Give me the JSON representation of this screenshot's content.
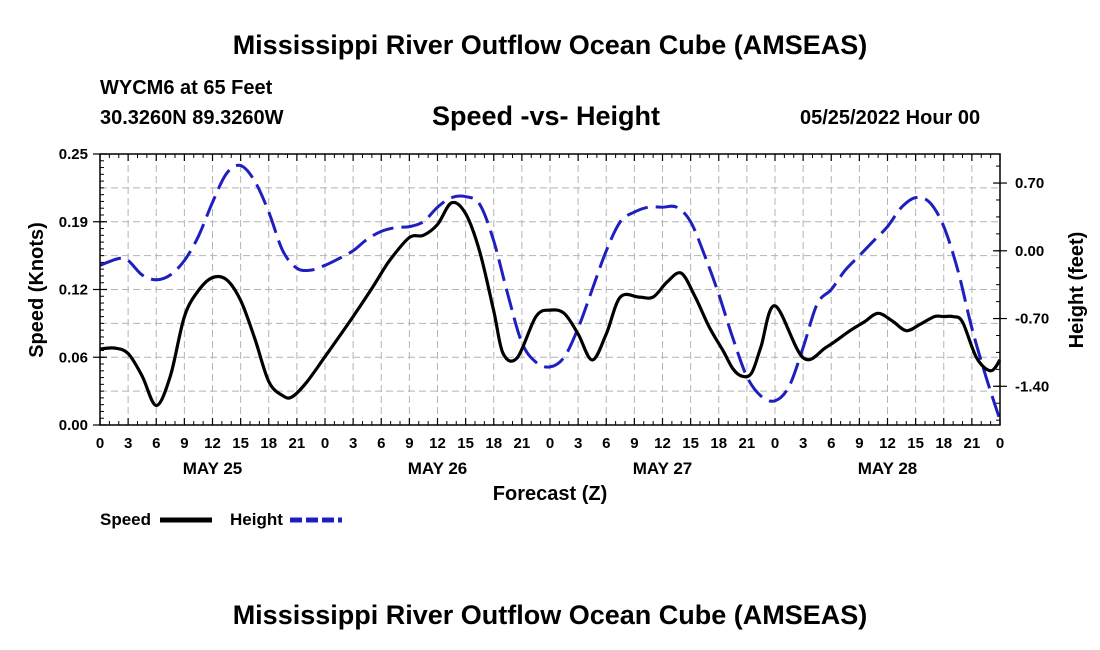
{
  "page": {
    "title": "Mississippi River Outflow Ocean Cube (AMSEAS)",
    "footer_title": "Mississippi River Outflow Ocean Cube (AMSEAS)",
    "station": "WYCM6 at 65 Feet",
    "coordinates": "30.3260N  89.3260W",
    "subtitle": "Speed -vs- Height",
    "datetime": "05/25/2022 Hour 00"
  },
  "colors": {
    "speed": "#000000",
    "height": "#1f1fbf",
    "grid": "#b4b4b4"
  },
  "chart_data": {
    "type": "line",
    "title": "Speed -vs- Height",
    "xlabel": "Forecast (Z)",
    "ylabel": "Speed (Knots)",
    "y2label": "Height (feet)",
    "xlim": [
      0,
      96
    ],
    "ylim": [
      0,
      0.25
    ],
    "y2lim": [
      -1.8,
      1.0
    ],
    "y_ticks": [
      "0.00",
      "0.06",
      "0.12",
      "0.19",
      "0.25"
    ],
    "y_tick_values": [
      0,
      0.0625,
      0.125,
      0.1875,
      0.25
    ],
    "y2_ticks": [
      "0.70",
      "0.00",
      "-0.70",
      "-1.40"
    ],
    "y2_tick_values": [
      0.7,
      0.0,
      -0.7,
      -1.4
    ],
    "x_tick_labels": [
      "0",
      "3",
      "6",
      "9",
      "12",
      "15",
      "18",
      "21",
      "0",
      "3",
      "6",
      "9",
      "12",
      "15",
      "18",
      "21",
      "0",
      "3",
      "6",
      "9",
      "12",
      "15",
      "18",
      "21",
      "0",
      "3",
      "6",
      "9",
      "12",
      "15",
      "18",
      "21",
      "0"
    ],
    "day_labels": [
      {
        "label": "MAY 25",
        "hour": 12
      },
      {
        "label": "MAY 26",
        "hour": 36
      },
      {
        "label": "MAY 27",
        "hour": 60
      },
      {
        "label": "MAY 28",
        "hour": 84
      }
    ],
    "series": [
      {
        "name": "Speed",
        "axis": "left",
        "style": "solid",
        "x": [
          0,
          1.5,
          3,
          4.5,
          6,
          7.5,
          9,
          10.5,
          12,
          13.5,
          15,
          16.5,
          18,
          19.5,
          20.5,
          22,
          24,
          27,
          29,
          30,
          31,
          33,
          34.5,
          36,
          37.5,
          39,
          40.5,
          42,
          43,
          44.5,
          46.5,
          48,
          49.5,
          51,
          52.5,
          54,
          55.5,
          57.5,
          59,
          60.5,
          62,
          63.5,
          65,
          66.5,
          67.5,
          68.5,
          69.5,
          70.5,
          72,
          75,
          77.5,
          80,
          81.5,
          83,
          84.5,
          86,
          87.5,
          89,
          90,
          91,
          92,
          93.5,
          95,
          96
        ],
        "values": [
          0.07,
          0.071,
          0.066,
          0.045,
          0.018,
          0.045,
          0.1,
          0.124,
          0.136,
          0.134,
          0.115,
          0.08,
          0.04,
          0.027,
          0.026,
          0.039,
          0.063,
          0.1,
          0.126,
          0.14,
          0.153,
          0.173,
          0.175,
          0.185,
          0.205,
          0.195,
          0.16,
          0.105,
          0.066,
          0.062,
          0.1,
          0.106,
          0.103,
          0.084,
          0.06,
          0.084,
          0.118,
          0.118,
          0.118,
          0.132,
          0.14,
          0.118,
          0.09,
          0.068,
          0.052,
          0.045,
          0.048,
          0.072,
          0.11,
          0.062,
          0.072,
          0.087,
          0.095,
          0.103,
          0.096,
          0.087,
          0.093,
          0.1,
          0.1,
          0.1,
          0.095,
          0.062,
          0.05,
          0.06
        ]
      },
      {
        "name": "Height",
        "axis": "right",
        "style": "dashed",
        "x": [
          0,
          2,
          3,
          4.5,
          6,
          7.5,
          9,
          10.5,
          12,
          13.5,
          15,
          16.5,
          18,
          19.5,
          21,
          22.5,
          24,
          25.5,
          27,
          28.5,
          30,
          31.5,
          33,
          34.5,
          36,
          37.5,
          39,
          40.5,
          42,
          43.5,
          45,
          46.5,
          48,
          49.5,
          51,
          52.5,
          54,
          55.5,
          57,
          58.5,
          60,
          61.5,
          63,
          64.5,
          66,
          67.5,
          69,
          70.5,
          72,
          73.5,
          75,
          76.5,
          78,
          79.5,
          81,
          82.5,
          84,
          85.5,
          87,
          88.5,
          90,
          91.5,
          93,
          94.5,
          96
        ],
        "values": [
          -0.15,
          -0.08,
          -0.1,
          -0.25,
          -0.3,
          -0.25,
          -0.1,
          0.15,
          0.5,
          0.8,
          0.88,
          0.72,
          0.4,
          0.0,
          -0.18,
          -0.2,
          -0.15,
          -0.08,
          0.0,
          0.12,
          0.2,
          0.24,
          0.25,
          0.3,
          0.45,
          0.55,
          0.56,
          0.48,
          0.1,
          -0.45,
          -0.95,
          -1.15,
          -1.2,
          -1.1,
          -0.8,
          -0.4,
          0.0,
          0.3,
          0.4,
          0.45,
          0.45,
          0.45,
          0.3,
          -0.05,
          -0.45,
          -0.9,
          -1.3,
          -1.5,
          -1.55,
          -1.4,
          -1.0,
          -0.55,
          -0.4,
          -0.2,
          -0.05,
          0.1,
          0.25,
          0.45,
          0.55,
          0.5,
          0.25,
          -0.2,
          -0.8,
          -1.3,
          -1.75
        ]
      }
    ],
    "legend": [
      {
        "label": "Speed",
        "series": "Speed"
      },
      {
        "label": "Height",
        "series": "Height"
      }
    ],
    "legend_placement": "bottom-left"
  }
}
